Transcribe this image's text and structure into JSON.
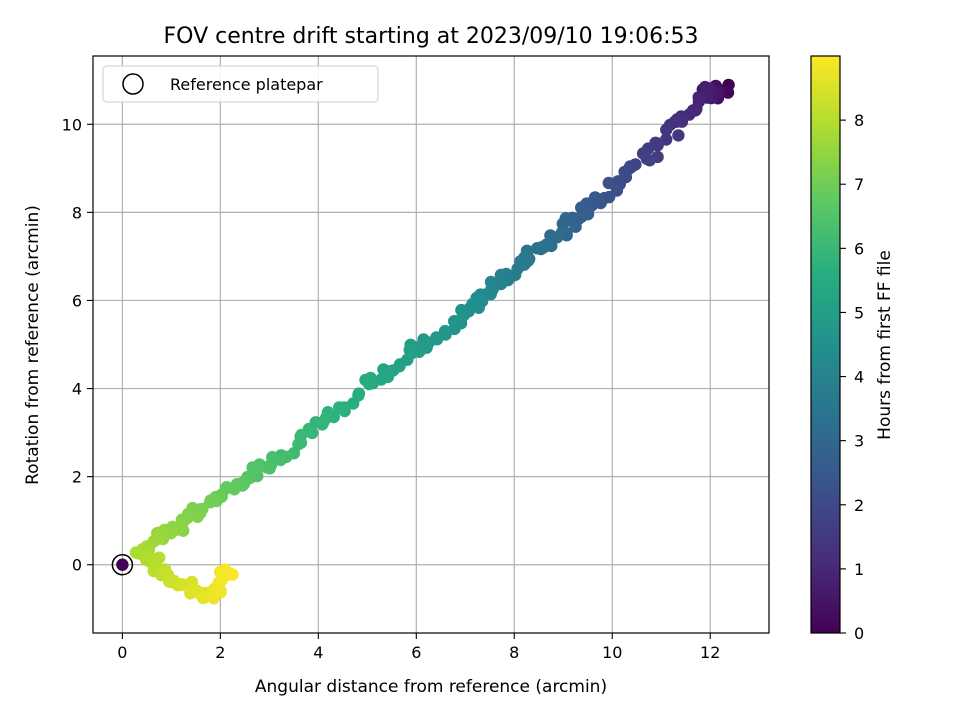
{
  "chart_data": {
    "type": "scatter",
    "title": "FOV centre drift starting at 2023/09/10 19:06:53",
    "xlabel": "Angular distance from reference (arcmin)",
    "ylabel": "Rotation from reference (arcmin)",
    "xlim": [
      -0.6,
      13.2
    ],
    "ylim": [
      -1.55,
      11.55
    ],
    "xticks": [
      0,
      2,
      4,
      6,
      8,
      10,
      12
    ],
    "yticks": [
      0,
      2,
      4,
      6,
      8,
      10
    ],
    "grid": true,
    "legend": {
      "position": "top-left",
      "entries": [
        "Reference platepar"
      ]
    },
    "reference_point": {
      "x": 0,
      "y": 0
    },
    "colorbar": {
      "label": "Hours from first FF file",
      "range": [
        0,
        9.0
      ],
      "ticks": [
        0,
        1,
        2,
        3,
        4,
        5,
        6,
        7,
        8
      ],
      "colormap": "viridis"
    },
    "trajectory_anchors": [
      {
        "hours": 0.0,
        "x": 12.3,
        "y": 10.8
      },
      {
        "hours": 0.8,
        "x": 11.9,
        "y": 10.7
      },
      {
        "hours": 1.5,
        "x": 11.0,
        "y": 9.6
      },
      {
        "hours": 2.3,
        "x": 9.8,
        "y": 8.4
      },
      {
        "hours": 3.0,
        "x": 9.0,
        "y": 7.6
      },
      {
        "hours": 3.7,
        "x": 8.0,
        "y": 6.7
      },
      {
        "hours": 4.4,
        "x": 7.2,
        "y": 5.9
      },
      {
        "hours": 5.0,
        "x": 6.0,
        "y": 4.8
      },
      {
        "hours": 5.6,
        "x": 4.7,
        "y": 3.8
      },
      {
        "hours": 6.2,
        "x": 3.3,
        "y": 2.5
      },
      {
        "hours": 6.8,
        "x": 2.2,
        "y": 1.7
      },
      {
        "hours": 7.3,
        "x": 1.3,
        "y": 1.0
      },
      {
        "hours": 7.8,
        "x": 0.4,
        "y": 0.3
      },
      {
        "hours": 8.3,
        "x": 1.0,
        "y": -0.35
      },
      {
        "hours": 8.7,
        "x": 1.8,
        "y": -0.75
      },
      {
        "hours": 8.95,
        "x": 2.2,
        "y": -0.2
      }
    ],
    "points_per_segment": 18,
    "scatter_spread": {
      "x": 0.22,
      "y": 0.22
    }
  }
}
